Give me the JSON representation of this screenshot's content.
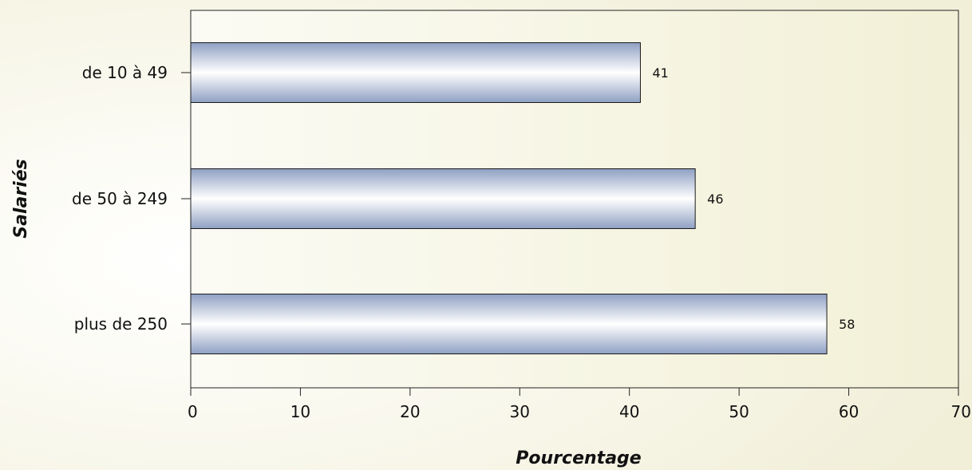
{
  "chart_data": {
    "type": "bar",
    "orientation": "horizontal",
    "categories": [
      "de 10 à 49",
      "de 50 à 249",
      "plus de 250"
    ],
    "values": [
      41,
      46,
      58
    ],
    "xlabel": "Pourcentage",
    "ylabel": "Salariés",
    "xlim": [
      0,
      70
    ],
    "xticks": [
      0,
      10,
      20,
      30,
      40,
      50,
      60,
      70
    ],
    "grid": false,
    "data_labels": true,
    "bar_color": "#a9b7d3",
    "background_color": "#f3f1da"
  }
}
